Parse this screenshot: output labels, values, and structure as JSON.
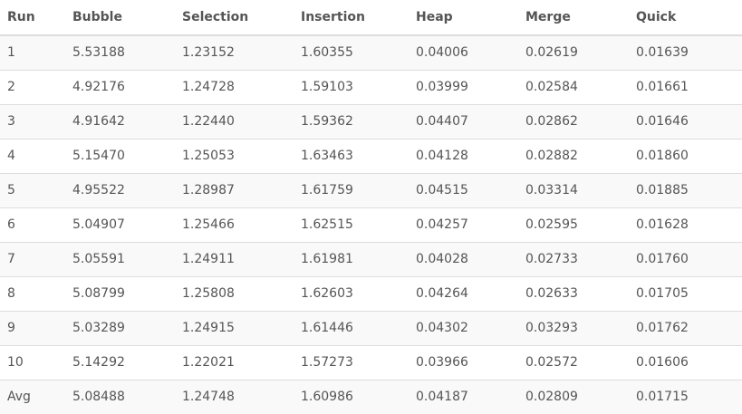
{
  "table": {
    "headers": [
      "Run",
      "Bubble",
      "Selection",
      "Insertion",
      "Heap",
      "Merge",
      "Quick"
    ],
    "rows": [
      [
        "1",
        "5.53188",
        "1.23152",
        "1.60355",
        "0.04006",
        "0.02619",
        "0.01639"
      ],
      [
        "2",
        "4.92176",
        "1.24728",
        "1.59103",
        "0.03999",
        "0.02584",
        "0.01661"
      ],
      [
        "3",
        "4.91642",
        "1.22440",
        "1.59362",
        "0.04407",
        "0.02862",
        "0.01646"
      ],
      [
        "4",
        "5.15470",
        "1.25053",
        "1.63463",
        "0.04128",
        "0.02882",
        "0.01860"
      ],
      [
        "5",
        "4.95522",
        "1.28987",
        "1.61759",
        "0.04515",
        "0.03314",
        "0.01885"
      ],
      [
        "6",
        "5.04907",
        "1.25466",
        "1.62515",
        "0.04257",
        "0.02595",
        "0.01628"
      ],
      [
        "7",
        "5.05591",
        "1.24911",
        "1.61981",
        "0.04028",
        "0.02733",
        "0.01760"
      ],
      [
        "8",
        "5.08799",
        "1.25808",
        "1.62603",
        "0.04264",
        "0.02633",
        "0.01705"
      ],
      [
        "9",
        "5.03289",
        "1.24915",
        "1.61446",
        "0.04302",
        "0.03293",
        "0.01762"
      ],
      [
        "10",
        "5.14292",
        "1.22021",
        "1.57273",
        "0.03966",
        "0.02572",
        "0.01606"
      ],
      [
        "Avg",
        "5.08488",
        "1.24748",
        "1.60986",
        "0.04187",
        "0.02809",
        "0.01715"
      ]
    ]
  },
  "colors": {
    "text": "#555555",
    "border": "#dddddd",
    "stripe": "#f9f9f9",
    "background": "#ffffff"
  }
}
